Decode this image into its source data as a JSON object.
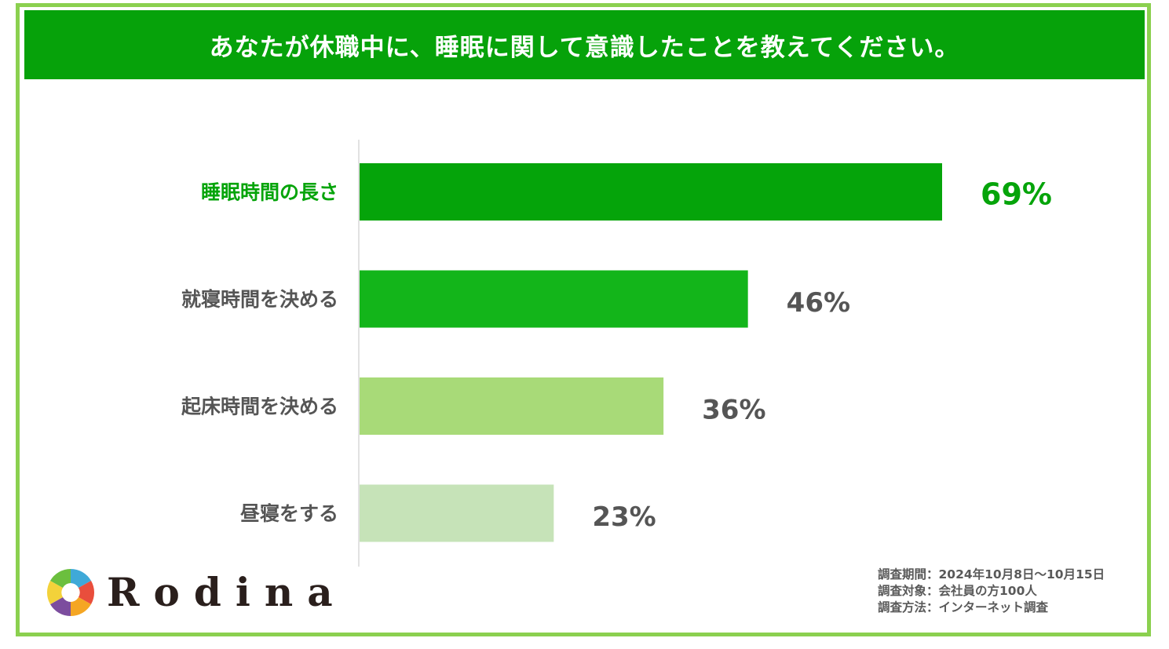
{
  "header": {
    "title": "あなたが休職中に、睡眠に関して意識したことを教えてください。"
  },
  "chart_data": {
    "type": "bar",
    "orientation": "horizontal",
    "categories": [
      "睡眠時間の長さ",
      "就寝時間を決める",
      "起床時間を決める",
      "昼寝をする"
    ],
    "values": [
      69,
      46,
      36,
      23
    ],
    "value_labels": [
      "69%",
      "46%",
      "36%",
      "23%"
    ],
    "bar_colors": [
      "#05A40A",
      "#13B51A",
      "#A8DA78",
      "#C6E3B8"
    ],
    "label_colors": [
      "#05A40A",
      "#555555",
      "#555555",
      "#555555"
    ],
    "value_label_colors": [
      "#05A40A",
      "#555555",
      "#555555",
      "#555555"
    ],
    "xlim": [
      0,
      100
    ],
    "grid": false
  },
  "logo": {
    "text": "Rodina"
  },
  "survey": {
    "period": "調査期間：2024年10月8日～10月15日",
    "target": "調査対象：会社員の方100人",
    "method": "調査方法：インターネット調査"
  }
}
